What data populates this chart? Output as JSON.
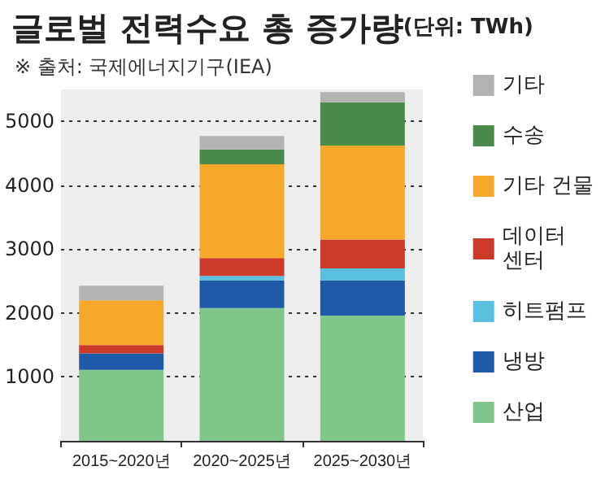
{
  "chart_data": {
    "type": "bar",
    "title": "글로벌 전력수요 총 증가량",
    "ylabel": "(단위: TWh)",
    "annotations": [
      "※ 출처: 국제에너지기구(IEA)"
    ],
    "categories": [
      "2015~2020년",
      "2020~2025년",
      "2025~2030년"
    ],
    "stacked": true,
    "series": [
      {
        "name": "산업",
        "color": "#80c68a",
        "values": [
          1110,
          2080,
          1960
        ]
      },
      {
        "name": "냉방",
        "color": "#1f5aa8",
        "values": [
          260,
          430,
          550
        ]
      },
      {
        "name": "히트펌프",
        "color": "#5bc0e0",
        "values": [
          0,
          70,
          190
        ]
      },
      {
        "name": "데이터 센터",
        "color": "#cc3a2a",
        "values": [
          130,
          280,
          450
        ]
      },
      {
        "name": "기타 건물",
        "color": "#f5a82a",
        "values": [
          700,
          1470,
          1470
        ]
      },
      {
        "name": "수송",
        "color": "#4a8a4a",
        "values": [
          0,
          230,
          680
        ]
      },
      {
        "name": "기타",
        "color": "#b3b3b3",
        "values": [
          230,
          210,
          160
        ]
      }
    ],
    "ylim": [
      0,
      5500
    ],
    "yticks": [
      1000,
      2000,
      3000,
      4000,
      5000
    ],
    "grid": "y",
    "legend": "right"
  }
}
